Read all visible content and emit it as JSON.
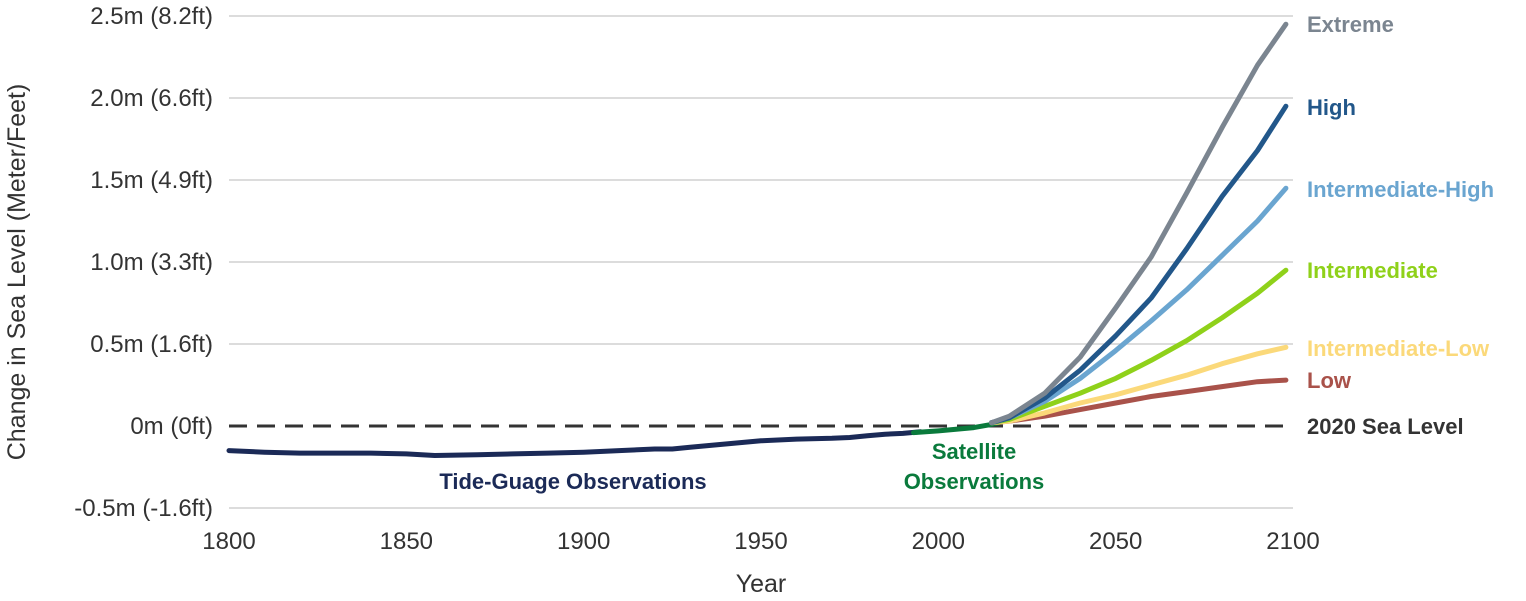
{
  "chart_data": {
    "type": "line",
    "xlabel": "Year",
    "ylabel": "Change in Sea Level (Meter/Feet)",
    "xlim": [
      1800,
      2100
    ],
    "ylim": [
      -0.5,
      2.5
    ],
    "x_ticks": [
      1800,
      1850,
      1900,
      1950,
      2000,
      2050,
      2100
    ],
    "y_ticks": [
      {
        "value": 2.5,
        "label": "2.5m (8.2ft)"
      },
      {
        "value": 2.0,
        "label": "2.0m (6.6ft)"
      },
      {
        "value": 1.5,
        "label": "1.5m (4.9ft)"
      },
      {
        "value": 1.0,
        "label": "1.0m (3.3ft)"
      },
      {
        "value": 0.5,
        "label": "0.5m (1.6ft)"
      },
      {
        "value": 0.0,
        "label": "0m (0ft)"
      },
      {
        "value": -0.5,
        "label": "-0.5m (-1.6ft)"
      }
    ],
    "grid": "horizontal",
    "reference_line": {
      "value": 0,
      "label": "2020 Sea Level",
      "color": "#333333",
      "style": "dashed"
    },
    "observations": [
      {
        "name": "Tide-Guage Observations",
        "color": "#1b2a57",
        "x": [
          1800,
          1810,
          1820,
          1840,
          1850,
          1858,
          1870,
          1880,
          1890,
          1900,
          1910,
          1920,
          1925,
          1930,
          1940,
          1950,
          1960,
          1970,
          1975,
          1980,
          1985,
          1990,
          1995
        ],
        "y": [
          -0.15,
          -0.16,
          -0.165,
          -0.165,
          -0.17,
          -0.18,
          -0.175,
          -0.17,
          -0.165,
          -0.16,
          -0.15,
          -0.14,
          -0.14,
          -0.13,
          -0.11,
          -0.09,
          -0.08,
          -0.075,
          -0.07,
          -0.06,
          -0.05,
          -0.045,
          -0.035
        ]
      },
      {
        "name": "Satellite Observations",
        "color": "#0a7a3c",
        "x": [
          1993,
          2000,
          2005,
          2010,
          2015,
          2017
        ],
        "y": [
          -0.04,
          -0.03,
          -0.02,
          -0.01,
          0.01,
          0.02
        ]
      }
    ],
    "series": [
      {
        "name": "Extreme",
        "color": "#7b8590",
        "x": [
          2015,
          2020,
          2030,
          2040,
          2050,
          2060,
          2070,
          2080,
          2090,
          2098
        ],
        "y": [
          0.02,
          0.06,
          0.2,
          0.42,
          0.72,
          1.03,
          1.42,
          1.82,
          2.2,
          2.45
        ]
      },
      {
        "name": "High",
        "color": "#22578a",
        "x": [
          2015,
          2020,
          2030,
          2040,
          2050,
          2060,
          2070,
          2080,
          2090,
          2098
        ],
        "y": [
          0.02,
          0.05,
          0.17,
          0.34,
          0.55,
          0.78,
          1.08,
          1.4,
          1.68,
          1.95
        ]
      },
      {
        "name": "Intermediate-High",
        "color": "#6aa5d0",
        "x": [
          2015,
          2020,
          2030,
          2040,
          2050,
          2060,
          2070,
          2080,
          2090,
          2098
        ],
        "y": [
          0.02,
          0.05,
          0.15,
          0.29,
          0.46,
          0.64,
          0.83,
          1.04,
          1.25,
          1.45
        ]
      },
      {
        "name": "Intermediate",
        "color": "#8fd11a",
        "x": [
          2015,
          2020,
          2030,
          2040,
          2050,
          2060,
          2070,
          2080,
          2090,
          2098
        ],
        "y": [
          0.02,
          0.04,
          0.12,
          0.2,
          0.29,
          0.4,
          0.52,
          0.66,
          0.81,
          0.95
        ]
      },
      {
        "name": "Intermediate-Low",
        "color": "#fbd97a",
        "x": [
          2015,
          2020,
          2030,
          2040,
          2050,
          2060,
          2070,
          2080,
          2090,
          2098
        ],
        "y": [
          0.02,
          0.03,
          0.08,
          0.14,
          0.19,
          0.25,
          0.31,
          0.38,
          0.44,
          0.48
        ]
      },
      {
        "name": "Low",
        "color": "#a9524a",
        "x": [
          2015,
          2020,
          2030,
          2040,
          2050,
          2060,
          2070,
          2080,
          2090,
          2098
        ],
        "y": [
          0.02,
          0.03,
          0.06,
          0.1,
          0.14,
          0.18,
          0.21,
          0.24,
          0.27,
          0.28
        ]
      }
    ]
  }
}
